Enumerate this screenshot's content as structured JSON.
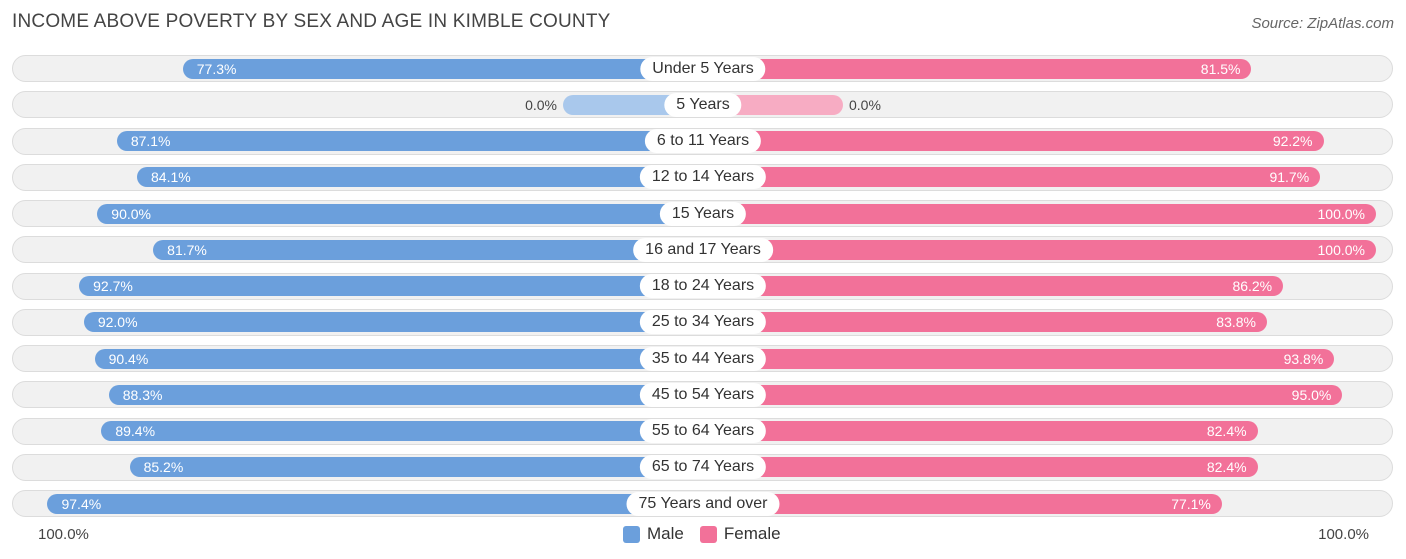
{
  "title": "INCOME ABOVE POVERTY BY SEX AND AGE IN KIMBLE COUNTY",
  "source": "Source: ZipAtlas.com",
  "colors": {
    "male": "#6b9fdc",
    "female": "#f27199",
    "male_zero": "#a9c8ec",
    "female_zero": "#f7acc3"
  },
  "chart_data": {
    "type": "bar",
    "orientation": "horizontal-diverging",
    "title": "INCOME ABOVE POVERTY BY SEX AND AGE IN KIMBLE COUNTY",
    "categories": [
      "Under 5 Years",
      "5 Years",
      "6 to 11 Years",
      "12 to 14 Years",
      "15 Years",
      "16 and 17 Years",
      "18 to 24 Years",
      "25 to 34 Years",
      "35 to 44 Years",
      "45 to 54 Years",
      "55 to 64 Years",
      "65 to 74 Years",
      "75 Years and over"
    ],
    "series": [
      {
        "name": "Male",
        "values": [
          77.3,
          0.0,
          87.1,
          84.1,
          90.0,
          81.7,
          92.7,
          92.0,
          90.4,
          88.3,
          89.4,
          85.2,
          97.4
        ],
        "labels": [
          "77.3%",
          "0.0%",
          "87.1%",
          "84.1%",
          "90.0%",
          "81.7%",
          "92.7%",
          "92.0%",
          "90.4%",
          "88.3%",
          "89.4%",
          "85.2%",
          "97.4%"
        ]
      },
      {
        "name": "Female",
        "values": [
          81.5,
          0.0,
          92.2,
          91.7,
          100.0,
          100.0,
          86.2,
          83.8,
          93.8,
          95.0,
          82.4,
          82.4,
          77.1
        ],
        "labels": [
          "81.5%",
          "0.0%",
          "92.2%",
          "91.7%",
          "100.0%",
          "100.0%",
          "86.2%",
          "83.8%",
          "93.8%",
          "95.0%",
          "82.4%",
          "82.4%",
          "77.1%"
        ]
      }
    ],
    "xlim": [
      0,
      100
    ],
    "axis_left_label": "100.0%",
    "axis_right_label": "100.0%",
    "legend": [
      "Male",
      "Female"
    ],
    "legend_position": "bottom-center"
  }
}
